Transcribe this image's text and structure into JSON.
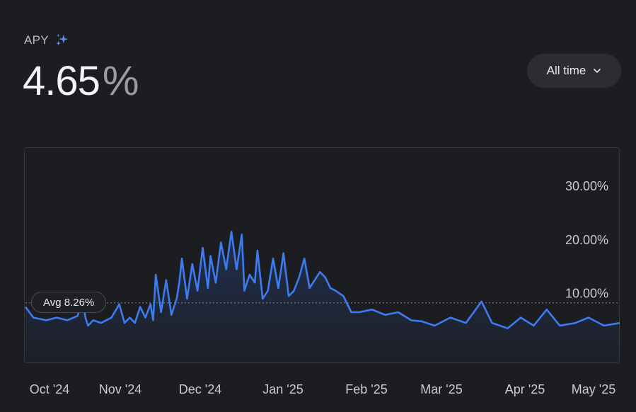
{
  "header": {
    "label": "APY",
    "value": "4.65",
    "unit": "%"
  },
  "range_selector": {
    "label": "All time"
  },
  "avg_pill": {
    "label": "Avg 8.26%"
  },
  "colors": {
    "line": "#3d7bf0",
    "background": "#1c1d20",
    "accent_sparkle": "#5b8def"
  },
  "chart_data": {
    "type": "area",
    "title": "",
    "xlabel": "",
    "ylabel": "",
    "x_ticks": [
      "Oct '24",
      "Nov '24",
      "Dec '24",
      "Jan '25",
      "Feb '25",
      "Mar '25",
      "Apr '25",
      "May '25"
    ],
    "y_ticks": [
      "30.00%",
      "20.00%",
      "10.00%"
    ],
    "y_tick_values": [
      30,
      20,
      10
    ],
    "ylim": [
      -3,
      37
    ],
    "average": 8.26,
    "grid": false,
    "series": [
      {
        "name": "APY",
        "x": [
          "2024-09-30",
          "2024-10-03",
          "2024-10-08",
          "2024-10-12",
          "2024-10-16",
          "2024-10-20",
          "2024-10-22",
          "2024-10-23",
          "2024-10-24",
          "2024-10-26",
          "2024-10-29",
          "2024-11-02",
          "2024-11-05",
          "2024-11-07",
          "2024-11-09",
          "2024-11-11",
          "2024-11-13",
          "2024-11-15",
          "2024-11-17",
          "2024-11-18",
          "2024-11-19",
          "2024-11-21",
          "2024-11-23",
          "2024-11-25",
          "2024-11-27",
          "2024-11-28",
          "2024-11-29",
          "2024-12-01",
          "2024-12-03",
          "2024-12-05",
          "2024-12-07",
          "2024-12-09",
          "2024-12-10",
          "2024-12-12",
          "2024-12-14",
          "2024-12-16",
          "2024-12-18",
          "2024-12-20",
          "2024-12-22",
          "2024-12-23",
          "2024-12-25",
          "2024-12-27",
          "2024-12-28",
          "2024-12-30",
          "2025-01-01",
          "2025-01-03",
          "2025-01-05",
          "2025-01-07",
          "2025-01-09",
          "2025-01-11",
          "2025-01-13",
          "2025-01-15",
          "2025-01-17",
          "2025-01-19",
          "2025-01-21",
          "2025-01-23",
          "2025-01-25",
          "2025-01-27",
          "2025-01-30",
          "2025-02-02",
          "2025-02-05",
          "2025-02-10",
          "2025-02-15",
          "2025-02-20",
          "2025-02-25",
          "2025-03-01",
          "2025-03-06",
          "2025-03-12",
          "2025-03-18",
          "2025-03-24",
          "2025-03-28",
          "2025-04-03",
          "2025-04-08",
          "2025-04-13",
          "2025-04-18",
          "2025-04-23",
          "2025-04-29",
          "2025-05-04",
          "2025-05-10",
          "2025-05-16"
        ],
        "y": [
          7.5,
          5.5,
          5.0,
          5.5,
          5.0,
          5.8,
          9.0,
          5.5,
          4.0,
          5.0,
          4.5,
          5.5,
          8.0,
          4.5,
          5.5,
          4.5,
          7.5,
          5.5,
          8.0,
          5.0,
          13.5,
          6.5,
          12.5,
          6.0,
          9.0,
          12.0,
          16.5,
          9.0,
          15.5,
          10.5,
          18.5,
          11.0,
          17.0,
          12.0,
          19.5,
          14.5,
          21.5,
          14.5,
          21.0,
          10.5,
          13.5,
          12.0,
          18.0,
          9.0,
          10.5,
          16.5,
          11.0,
          17.5,
          9.5,
          10.5,
          13.0,
          16.5,
          11.0,
          12.5,
          14.0,
          13.0,
          11.0,
          10.5,
          9.5,
          6.5,
          6.5,
          7.0,
          6.0,
          6.5,
          5.0,
          4.8,
          4.0,
          5.5,
          4.5,
          8.5,
          4.5,
          3.5,
          5.5,
          4.0,
          7.0,
          4.0,
          4.5,
          5.5,
          4.0,
          4.5
        ]
      }
    ]
  }
}
